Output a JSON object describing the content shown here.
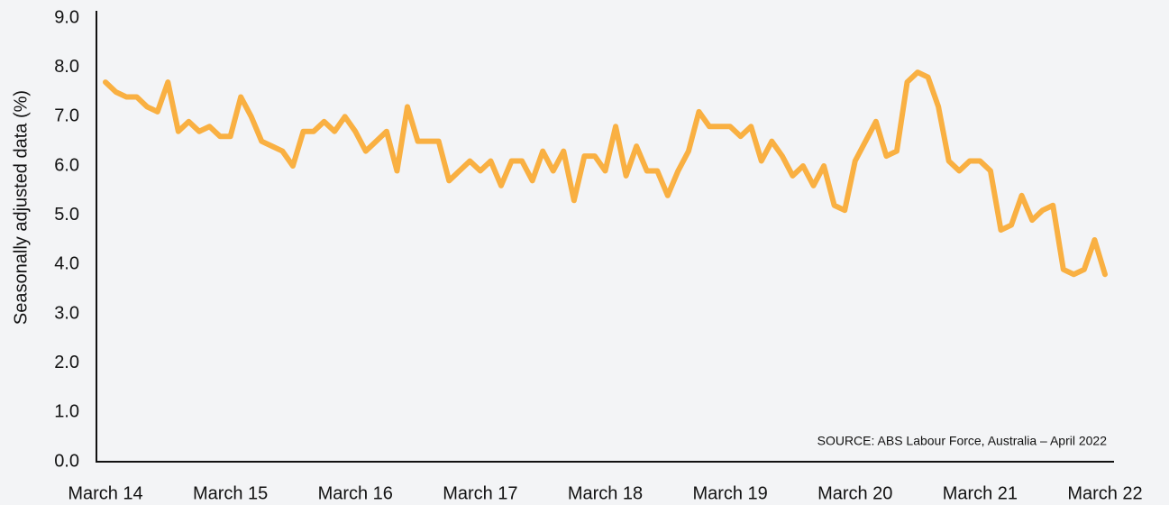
{
  "chart_data": {
    "type": "line",
    "y_label": "Seasonally adjusted data (%)",
    "source": "SOURCE: ABS Labour Force, Australia – April 2022",
    "categories": [
      "March 14",
      null,
      null,
      null,
      null,
      null,
      null,
      null,
      null,
      null,
      null,
      null,
      "March 15",
      null,
      null,
      null,
      null,
      null,
      null,
      null,
      null,
      null,
      null,
      null,
      "March 16",
      null,
      null,
      null,
      null,
      null,
      null,
      null,
      null,
      null,
      null,
      null,
      "March 17",
      null,
      null,
      null,
      null,
      null,
      null,
      null,
      null,
      null,
      null,
      null,
      "March 18",
      null,
      null,
      null,
      null,
      null,
      null,
      null,
      null,
      null,
      null,
      null,
      "March 19",
      null,
      null,
      null,
      null,
      null,
      null,
      null,
      null,
      null,
      null,
      null,
      "March 20",
      null,
      null,
      null,
      null,
      null,
      null,
      null,
      null,
      null,
      null,
      null,
      "March 21",
      null,
      null,
      null,
      null,
      null,
      null,
      null,
      null,
      null,
      null,
      null,
      "March 22"
    ],
    "series": [
      {
        "color": "#f9b042",
        "values": [
          7.7,
          7.5,
          7.4,
          7.4,
          7.2,
          7.1,
          7.7,
          6.7,
          6.9,
          6.7,
          6.8,
          6.6,
          6.6,
          7.4,
          7.0,
          6.5,
          6.4,
          6.3,
          6.0,
          6.7,
          6.7,
          6.9,
          6.7,
          7.0,
          6.7,
          6.3,
          6.5,
          6.7,
          5.9,
          7.2,
          6.5,
          6.5,
          6.5,
          5.7,
          5.9,
          6.1,
          5.9,
          6.1,
          5.6,
          6.1,
          6.1,
          5.7,
          6.3,
          5.9,
          6.3,
          5.3,
          6.2,
          6.2,
          5.9,
          6.8,
          5.8,
          6.4,
          5.9,
          5.9,
          5.4,
          5.9,
          6.3,
          7.1,
          6.8,
          6.8,
          6.8,
          6.6,
          6.8,
          6.1,
          6.5,
          6.2,
          5.8,
          6.0,
          5.6,
          6.0,
          5.2,
          5.1,
          6.1,
          6.5,
          6.9,
          6.2,
          6.3,
          7.7,
          7.9,
          7.8,
          7.2,
          6.1,
          5.9,
          6.1,
          6.1,
          5.9,
          4.7,
          4.8,
          5.4,
          4.9,
          5.1,
          5.2,
          3.9,
          3.8,
          3.9,
          4.5,
          3.8
        ]
      }
    ],
    "ylim": [
      0,
      9
    ],
    "yticks": [
      {
        "value": 0,
        "label": "0.0"
      },
      {
        "value": 1,
        "label": "1.0"
      },
      {
        "value": 2,
        "label": "2.0"
      },
      {
        "value": 3,
        "label": "3.0"
      },
      {
        "value": 4,
        "label": "4.0"
      },
      {
        "value": 5,
        "label": "5.0"
      },
      {
        "value": 6,
        "label": "6.0"
      },
      {
        "value": 7,
        "label": "7.0"
      },
      {
        "value": 8,
        "label": "8.0"
      },
      {
        "value": 9,
        "label": "9.0"
      }
    ]
  }
}
